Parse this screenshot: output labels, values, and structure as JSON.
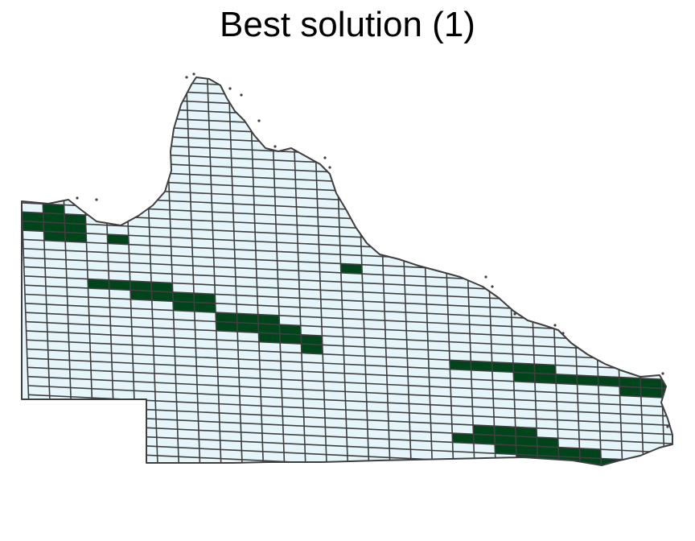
{
  "title": "Best solution (1)",
  "colors": {
    "selected": "#00441b",
    "unselected": "#e5f5f9",
    "outline": "#3f3f3f",
    "background": "#ffffff"
  },
  "map": {
    "layer": "planning-unit-grid",
    "legend": "none",
    "selected_units": [
      [
        0,
        1
      ],
      [
        0,
        2
      ],
      [
        1,
        0
      ],
      [
        1,
        1
      ],
      [
        1,
        2
      ],
      [
        1,
        3
      ],
      [
        2,
        1
      ],
      [
        2,
        2
      ],
      [
        2,
        3
      ],
      [
        4,
        3
      ],
      [
        3,
        8
      ],
      [
        4,
        8
      ],
      [
        5,
        8
      ],
      [
        6,
        8
      ],
      [
        5,
        9
      ],
      [
        6,
        9
      ],
      [
        7,
        9
      ],
      [
        8,
        9
      ],
      [
        7,
        10
      ],
      [
        8,
        10
      ],
      [
        9,
        11
      ],
      [
        10,
        11
      ],
      [
        11,
        11
      ],
      [
        9,
        12
      ],
      [
        10,
        12
      ],
      [
        11,
        12
      ],
      [
        12,
        12
      ],
      [
        11,
        13
      ],
      [
        12,
        13
      ],
      [
        13,
        13
      ],
      [
        13,
        14
      ],
      [
        15,
        5
      ],
      [
        20,
        15
      ],
      [
        21,
        15
      ],
      [
        22,
        15
      ],
      [
        23,
        15
      ],
      [
        24,
        15
      ],
      [
        23,
        16
      ],
      [
        24,
        16
      ],
      [
        25,
        16
      ],
      [
        26,
        16
      ],
      [
        27,
        16
      ],
      [
        28,
        16
      ],
      [
        29,
        16
      ],
      [
        30,
        16
      ],
      [
        28,
        17
      ],
      [
        29,
        17
      ],
      [
        30,
        17
      ],
      [
        21,
        22
      ],
      [
        22,
        22
      ],
      [
        23,
        22
      ],
      [
        20,
        23
      ],
      [
        21,
        23
      ],
      [
        22,
        23
      ],
      [
        23,
        23
      ],
      [
        24,
        23
      ],
      [
        22,
        24
      ],
      [
        23,
        24
      ],
      [
        24,
        24
      ],
      [
        25,
        24
      ],
      [
        26,
        24
      ],
      [
        23,
        25
      ],
      [
        24,
        25
      ],
      [
        25,
        25
      ],
      [
        26,
        25
      ],
      [
        27,
        25
      ],
      [
        24,
        26
      ],
      [
        25,
        26
      ],
      [
        26,
        26
      ],
      [
        27,
        26
      ],
      [
        28,
        26
      ],
      [
        26,
        27
      ],
      [
        27,
        27
      ]
    ]
  }
}
